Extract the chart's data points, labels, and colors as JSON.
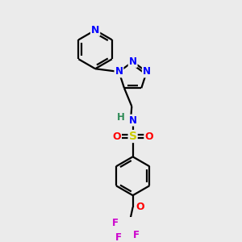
{
  "background_color": "#ebebeb",
  "atom_colors": {
    "N": "#0000ff",
    "O": "#ff0000",
    "S": "#cccc00",
    "F": "#cc00cc",
    "C": "#000000",
    "H": "#2e8b57"
  },
  "line_color": "#000000",
  "line_width": 1.6,
  "figsize": [
    3.0,
    3.0
  ],
  "dpi": 100
}
